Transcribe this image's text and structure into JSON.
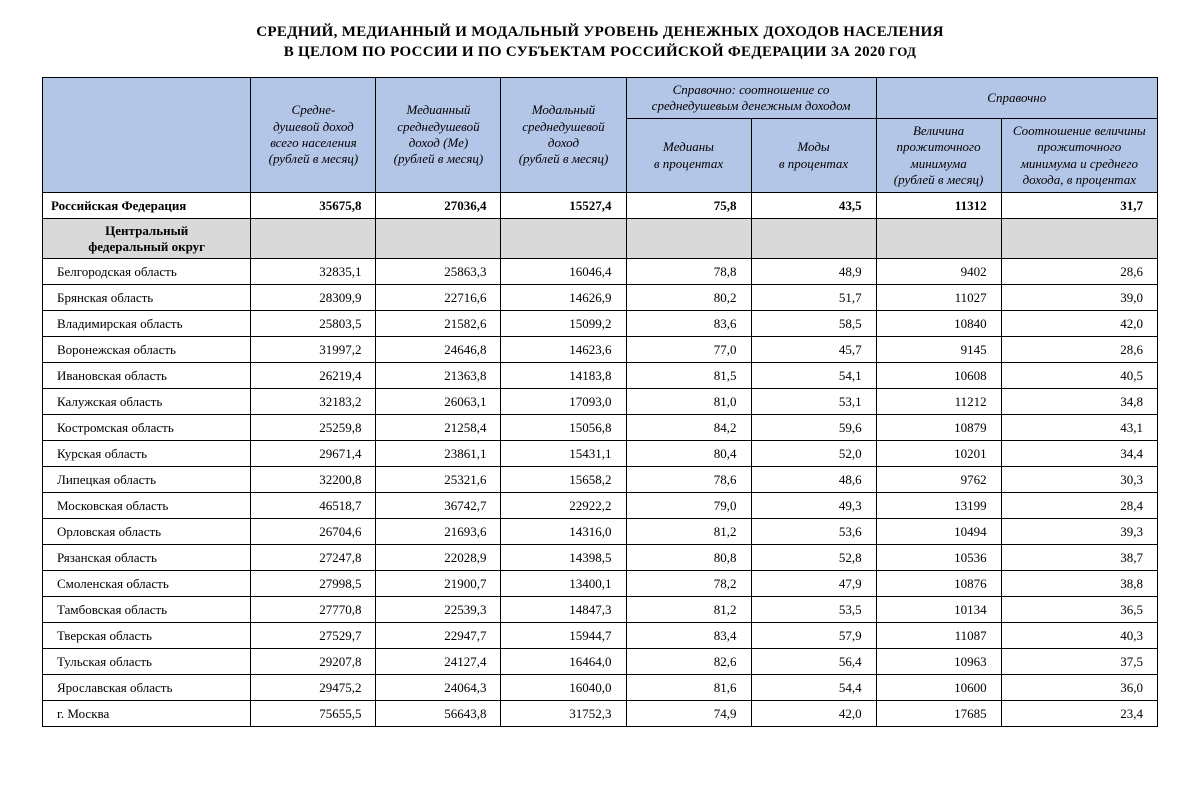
{
  "title_line1": "СРЕДНИЙ, МЕДИАННЫЙ И МОДАЛЬНЫЙ УРОВЕНЬ ДЕНЕЖНЫХ ДОХОДОВ НАСЕЛЕНИЯ",
  "title_line2_a": "В ЦЕЛОМ ПО РОССИИ И ПО СУБЪЕКТАМ РОССИЙСКОЙ ФЕДЕРАЦИИ ЗА 2020",
  "title_line2_b": " ГОД",
  "columns": {
    "blank": "",
    "mean": "Средне-\nдушевой доход\nвсего населения\n(рублей в месяц)",
    "median": "Медианный\nсреднедушевой\nдоход (Ме)\n(рублей в месяц)",
    "mode": "Модальный\nсреднедушевой\nдоход\n(рублей в месяц)",
    "ratio_group": "Справочно: соотношение со среднедушевым денежным доходом",
    "ratio_median": "Медианы\nв процентах",
    "ratio_mode": "Моды\nв процентах",
    "ref_group": "Справочно",
    "min_living": "Величина\nпрожиточного\nминимума\n(рублей в месяц)",
    "min_ratio": "Соотношение величины\nпрожиточного\nминимума и среднего\nдохода, в процентах"
  },
  "total_row": {
    "name": "Российская Федерация",
    "mean": "35675,8",
    "median": "27036,4",
    "mode": "15527,4",
    "rmed": "75,8",
    "rmode": "43,5",
    "minliv": "11312",
    "minratio": "31,7"
  },
  "section_label": "Центральный\nфедеральный округ",
  "rows": [
    {
      "name": "Белгородская область",
      "mean": "32835,1",
      "median": "25863,3",
      "mode": "16046,4",
      "rmed": "78,8",
      "rmode": "48,9",
      "minliv": "9402",
      "minratio": "28,6"
    },
    {
      "name": "Брянская область",
      "mean": "28309,9",
      "median": "22716,6",
      "mode": "14626,9",
      "rmed": "80,2",
      "rmode": "51,7",
      "minliv": "11027",
      "minratio": "39,0"
    },
    {
      "name": "Владимирская область",
      "mean": "25803,5",
      "median": "21582,6",
      "mode": "15099,2",
      "rmed": "83,6",
      "rmode": "58,5",
      "minliv": "10840",
      "minratio": "42,0"
    },
    {
      "name": "Воронежская область",
      "mean": "31997,2",
      "median": "24646,8",
      "mode": "14623,6",
      "rmed": "77,0",
      "rmode": "45,7",
      "minliv": "9145",
      "minratio": "28,6"
    },
    {
      "name": "Ивановская область",
      "mean": "26219,4",
      "median": "21363,8",
      "mode": "14183,8",
      "rmed": "81,5",
      "rmode": "54,1",
      "minliv": "10608",
      "minratio": "40,5"
    },
    {
      "name": "Калужская область",
      "mean": "32183,2",
      "median": "26063,1",
      "mode": "17093,0",
      "rmed": "81,0",
      "rmode": "53,1",
      "minliv": "11212",
      "minratio": "34,8"
    },
    {
      "name": "Костромская область",
      "mean": "25259,8",
      "median": "21258,4",
      "mode": "15056,8",
      "rmed": "84,2",
      "rmode": "59,6",
      "minliv": "10879",
      "minratio": "43,1"
    },
    {
      "name": "Курская область",
      "mean": "29671,4",
      "median": "23861,1",
      "mode": "15431,1",
      "rmed": "80,4",
      "rmode": "52,0",
      "minliv": "10201",
      "minratio": "34,4"
    },
    {
      "name": "Липецкая область",
      "mean": "32200,8",
      "median": "25321,6",
      "mode": "15658,2",
      "rmed": "78,6",
      "rmode": "48,6",
      "minliv": "9762",
      "minratio": "30,3"
    },
    {
      "name": "Московская область",
      "mean": "46518,7",
      "median": "36742,7",
      "mode": "22922,2",
      "rmed": "79,0",
      "rmode": "49,3",
      "minliv": "13199",
      "minratio": "28,4"
    },
    {
      "name": "Орловская область",
      "mean": "26704,6",
      "median": "21693,6",
      "mode": "14316,0",
      "rmed": "81,2",
      "rmode": "53,6",
      "minliv": "10494",
      "minratio": "39,3"
    },
    {
      "name": "Рязанская область",
      "mean": "27247,8",
      "median": "22028,9",
      "mode": "14398,5",
      "rmed": "80,8",
      "rmode": "52,8",
      "minliv": "10536",
      "minratio": "38,7"
    },
    {
      "name": "Смоленская область",
      "mean": "27998,5",
      "median": "21900,7",
      "mode": "13400,1",
      "rmed": "78,2",
      "rmode": "47,9",
      "minliv": "10876",
      "minratio": "38,8"
    },
    {
      "name": "Тамбовская область",
      "mean": "27770,8",
      "median": "22539,3",
      "mode": "14847,3",
      "rmed": "81,2",
      "rmode": "53,5",
      "minliv": "10134",
      "minratio": "36,5"
    },
    {
      "name": "Тверская область",
      "mean": "27529,7",
      "median": "22947,7",
      "mode": "15944,7",
      "rmed": "83,4",
      "rmode": "57,9",
      "minliv": "11087",
      "minratio": "40,3"
    },
    {
      "name": "Тульская область",
      "mean": "29207,8",
      "median": "24127,4",
      "mode": "16464,0",
      "rmed": "82,6",
      "rmode": "56,4",
      "minliv": "10963",
      "minratio": "37,5"
    },
    {
      "name": "Ярославская область",
      "mean": "29475,2",
      "median": "24064,3",
      "mode": "16040,0",
      "rmed": "81,6",
      "rmode": "54,4",
      "minliv": "10600",
      "minratio": "36,0"
    },
    {
      "name": "г. Москва",
      "mean": "75655,5",
      "median": "56643,8",
      "mode": "31752,3",
      "rmed": "74,9",
      "rmode": "42,0",
      "minliv": "17685",
      "minratio": "23,4"
    }
  ],
  "style": {
    "header_bg": "#b4c6e7",
    "section_bg": "#d9d9d9",
    "border_color": "#000000",
    "font_family": "Times New Roman"
  }
}
